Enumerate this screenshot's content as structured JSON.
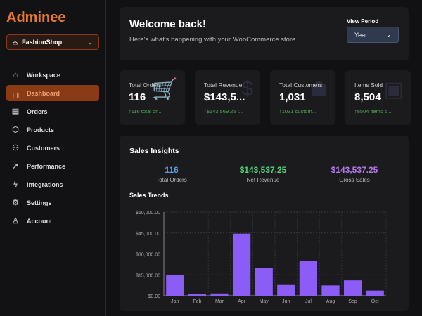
{
  "sidebar": {
    "logo": "Adminee",
    "shop": "FashionShop",
    "items": [
      {
        "label": "Workspace",
        "icon": "home-icon",
        "glyph": "⌂"
      },
      {
        "label": "Dashboard",
        "icon": "bar-chart-icon",
        "glyph": "╷╻",
        "active": true
      },
      {
        "label": "Orders",
        "icon": "document-icon",
        "glyph": "▤"
      },
      {
        "label": "Products",
        "icon": "box-icon",
        "glyph": "⬡"
      },
      {
        "label": "Customers",
        "icon": "users-icon",
        "glyph": "⚇"
      },
      {
        "label": "Performance",
        "icon": "trend-icon",
        "glyph": "↗"
      },
      {
        "label": "Integrations",
        "icon": "bolt-icon",
        "glyph": "ϟ"
      },
      {
        "label": "Settings",
        "icon": "gear-icon",
        "glyph": "⚙"
      },
      {
        "label": "Account",
        "icon": "user-icon",
        "glyph": "♙"
      }
    ]
  },
  "header": {
    "title": "Welcome back!",
    "subtitle": "Here's what's happening with your WooCommerce store.",
    "period_label": "View Period",
    "period_value": "Year"
  },
  "stats": [
    {
      "label": "Total Orders",
      "value": "116",
      "sub": "↑116 total or...",
      "icon": "cart-icon",
      "glyph": "🛒"
    },
    {
      "label": "Total Revenue",
      "value": "$143,5...",
      "sub": "↑$143,569.25 t...",
      "icon": "dollar-icon",
      "glyph": "$"
    },
    {
      "label": "Total Customers",
      "value": "1,031",
      "sub": "↑1031 custom...",
      "icon": "users-icon",
      "glyph": "☗"
    },
    {
      "label": "Items Sold",
      "value": "8,504",
      "sub": "↑8504 items s...",
      "icon": "box-icon",
      "glyph": "▣"
    }
  ],
  "insights": {
    "title": "Sales Insights",
    "metrics": [
      {
        "value": "116",
        "label": "Total Orders",
        "color": "#5aa0ee"
      },
      {
        "value": "$143,537.25",
        "label": "Net Revenue",
        "color": "#4cd680"
      },
      {
        "value": "$143,537.25",
        "label": "Gross Sales",
        "color": "#b07ae8"
      }
    ],
    "trends_title": "Sales Trends"
  },
  "chart_data": {
    "type": "bar",
    "categories": [
      "Jan",
      "Feb",
      "Mar",
      "Apr",
      "May",
      "Jun",
      "Jul",
      "Aug",
      "Sep",
      "Oct"
    ],
    "values": [
      14800,
      1500,
      1600,
      44500,
      19800,
      7700,
      24800,
      7400,
      11000,
      3700
    ],
    "ylim": [
      0,
      60000
    ],
    "yticks": [
      "$0.00",
      "$15,000.00",
      "$30,000.00",
      "$45,000.00",
      "$60,000.00"
    ],
    "grid": true,
    "color": "#8b5cf6"
  }
}
